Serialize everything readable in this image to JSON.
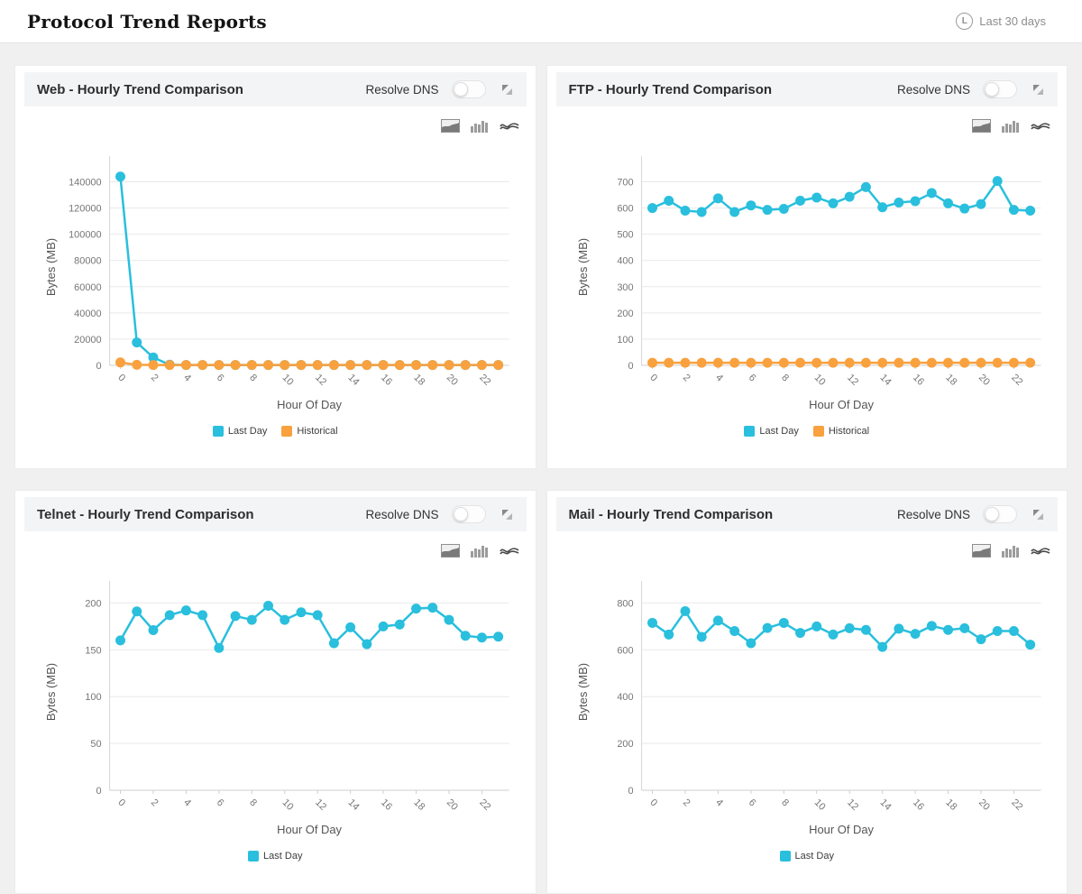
{
  "header": {
    "title": "Protocol Trend Reports",
    "time_range": {
      "icon": "clock-badge-L",
      "icon_letter": "L",
      "label": "Last 30 days"
    }
  },
  "panel_common": {
    "resolve_dns_label": "Resolve DNS",
    "resolve_dns_on": false,
    "chart_type_icons": [
      "area-chart-icon",
      "bar-chart-icon",
      "line-chart-icon"
    ],
    "expand_icon": "expand-icon"
  },
  "colors": {
    "last_day": "#29BFDD",
    "historical": "#F8A13E",
    "panel_header_bg": "#f3f4f6",
    "page_bg": "#f0f0f1",
    "grid": "#e9e9e9"
  },
  "chart_data": [
    {
      "id": "web",
      "type": "line",
      "title": "Web - Hourly Trend Comparison",
      "xlabel": "Hour Of Day",
      "ylabel": "Bytes (MB)",
      "grid": true,
      "legend_position": "bottom-center",
      "x": [
        0,
        1,
        2,
        3,
        4,
        5,
        6,
        7,
        8,
        9,
        10,
        11,
        12,
        13,
        14,
        15,
        16,
        17,
        18,
        19,
        20,
        21,
        22,
        23
      ],
      "ylim": [
        0,
        150000
      ],
      "yticks": [
        0,
        20000,
        40000,
        60000,
        80000,
        100000,
        120000,
        140000
      ],
      "series": [
        {
          "name": "Last Day",
          "color": "#29BFDD",
          "values": [
            144000,
            17500,
            6000,
            500,
            300,
            300,
            300,
            300,
            300,
            300,
            300,
            300,
            300,
            300,
            300,
            300,
            300,
            300,
            300,
            300,
            300,
            300,
            300,
            300
          ]
        },
        {
          "name": "Historical",
          "color": "#F8A13E",
          "values": [
            2200,
            400,
            300,
            300,
            300,
            300,
            300,
            300,
            300,
            300,
            300,
            300,
            300,
            300,
            300,
            300,
            300,
            300,
            300,
            300,
            300,
            300,
            300,
            300
          ]
        }
      ]
    },
    {
      "id": "ftp",
      "type": "line",
      "title": "FTP - Hourly Trend Comparison",
      "xlabel": "Hour Of Day",
      "ylabel": "Bytes (MB)",
      "grid": true,
      "legend_position": "bottom-center",
      "x": [
        0,
        1,
        2,
        3,
        4,
        5,
        6,
        7,
        8,
        9,
        10,
        11,
        12,
        13,
        14,
        15,
        16,
        17,
        18,
        19,
        20,
        21,
        22,
        23
      ],
      "ylim": [
        0,
        750
      ],
      "yticks": [
        0,
        100,
        200,
        300,
        400,
        500,
        600,
        700
      ],
      "series": [
        {
          "name": "Last Day",
          "color": "#29BFDD",
          "values": [
            600,
            628,
            590,
            585,
            637,
            585,
            610,
            593,
            597,
            628,
            640,
            618,
            643,
            680,
            603,
            621,
            626,
            657,
            618,
            598,
            615,
            703,
            593,
            590
          ]
        },
        {
          "name": "Historical",
          "color": "#F8A13E",
          "values": [
            10,
            10,
            10,
            10,
            10,
            10,
            10,
            10,
            10,
            10,
            10,
            10,
            10,
            10,
            10,
            10,
            10,
            10,
            10,
            10,
            10,
            10,
            10,
            10
          ]
        }
      ]
    },
    {
      "id": "telnet",
      "type": "line",
      "title": "Telnet - Hourly Trend Comparison",
      "xlabel": "Hour Of Day",
      "ylabel": "Bytes (MB)",
      "grid": true,
      "legend_position": "bottom-center",
      "x": [
        0,
        1,
        2,
        3,
        4,
        5,
        6,
        7,
        8,
        9,
        10,
        11,
        12,
        13,
        14,
        15,
        16,
        17,
        18,
        19,
        20,
        21,
        22,
        23
      ],
      "ylim": [
        0,
        210
      ],
      "yticks": [
        0,
        50,
        100,
        150,
        200
      ],
      "series": [
        {
          "name": "Last Day",
          "color": "#29BFDD",
          "values": [
            160,
            191,
            171,
            187,
            192,
            187,
            152,
            186,
            182,
            197,
            182,
            190,
            187,
            157,
            174,
            156,
            175,
            177,
            194,
            195,
            182,
            165,
            163,
            164
          ]
        }
      ]
    },
    {
      "id": "mail",
      "type": "line",
      "title": "Mail - Hourly Trend Comparison",
      "xlabel": "Hour Of Day",
      "ylabel": "Bytes (MB)",
      "grid": true,
      "legend_position": "bottom-center",
      "x": [
        0,
        1,
        2,
        3,
        4,
        5,
        6,
        7,
        8,
        9,
        10,
        11,
        12,
        13,
        14,
        15,
        16,
        17,
        18,
        19,
        20,
        21,
        22,
        23
      ],
      "ylim": [
        0,
        840
      ],
      "yticks": [
        0,
        200,
        400,
        600,
        800
      ],
      "series": [
        {
          "name": "Last Day",
          "color": "#29BFDD",
          "values": [
            715,
            665,
            765,
            655,
            725,
            680,
            628,
            693,
            715,
            672,
            700,
            665,
            692,
            685,
            612,
            690,
            668,
            702,
            685,
            692,
            645,
            680,
            680,
            622
          ]
        }
      ]
    }
  ]
}
